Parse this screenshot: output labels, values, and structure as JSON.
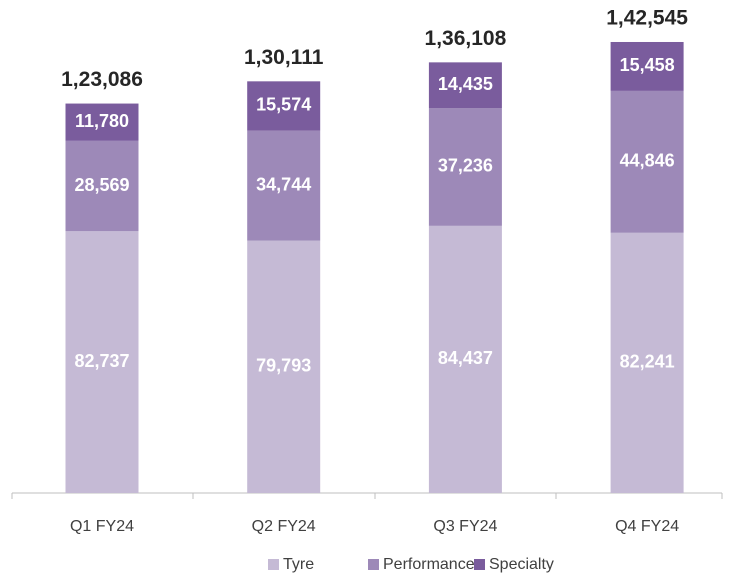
{
  "chart_data": {
    "type": "stacked_bar",
    "categories": [
      "Q1 FY24",
      "Q2 FY24",
      "Q3 FY24",
      "Q4 FY24"
    ],
    "series": [
      {
        "name": "Tyre",
        "color": "#c5bad5",
        "values": [
          82737,
          79793,
          84437,
          82241
        ],
        "value_labels": [
          "82,737",
          "79,793",
          "84,437",
          "82,241"
        ]
      },
      {
        "name": "Performance",
        "color": "#9d89b8",
        "values": [
          28569,
          34744,
          37236,
          44846
        ],
        "value_labels": [
          "28,569",
          "34,744",
          "37,236",
          "44,846"
        ]
      },
      {
        "name": "Specialty",
        "color": "#7a5c9d",
        "values": [
          11780,
          15574,
          14435,
          15458
        ],
        "value_labels": [
          "11,780",
          "15,574",
          "14,435",
          "15,458"
        ]
      }
    ],
    "totals": [
      123086,
      130111,
      136108,
      142545
    ],
    "total_labels": [
      "1,23,086",
      "1,30,111",
      "1,36,108",
      "1,42,545"
    ]
  }
}
